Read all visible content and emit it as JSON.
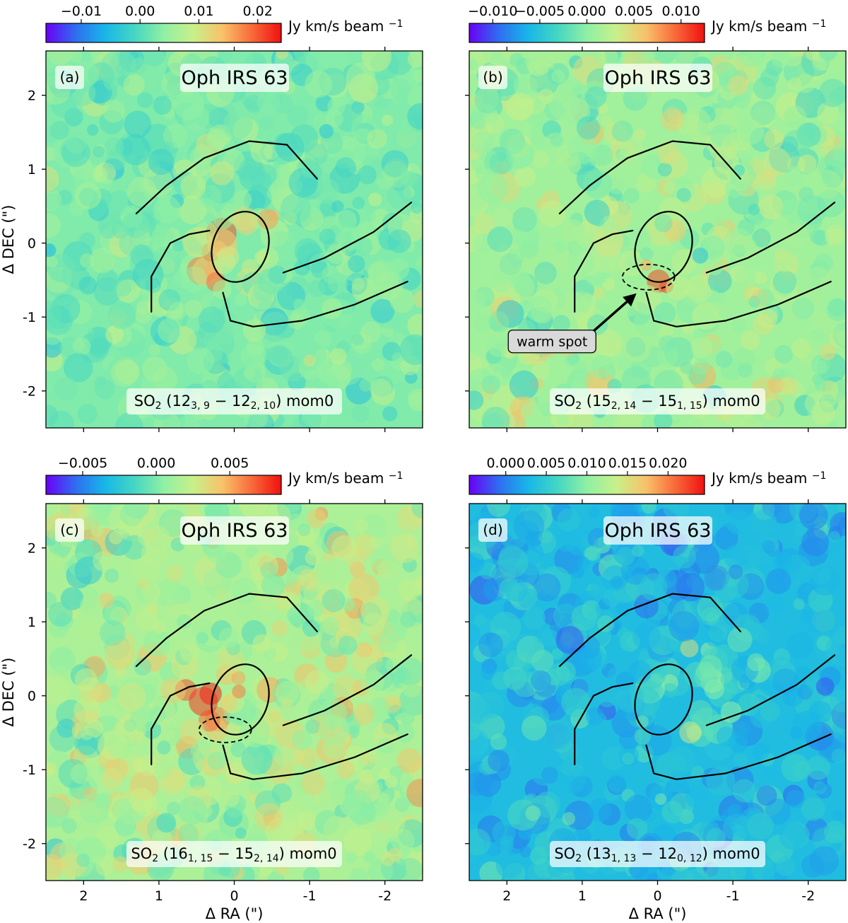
{
  "figure": {
    "xlabel": "Δ RA (\")",
    "ylabel": "Δ DEC (\")",
    "colorbar_unit": "Jy km/s beam",
    "colorbar_unit_exp": "−1",
    "colormap": "rainbow",
    "colors": {
      "structure_lines": "#000000",
      "annotation_box_fill": "#d9d9d9",
      "cmap_stops": [
        "#6a00f5",
        "#2f6df0",
        "#18b6e8",
        "#44d6c3",
        "#8ff0a4",
        "#c8f08a",
        "#f8c26a",
        "#f86a3a",
        "#f01010"
      ]
    }
  },
  "chart_data": [
    {
      "type": "heatmap",
      "panel": "(a)",
      "title": "Oph IRS 63",
      "line_label": {
        "species": "SO",
        "species_sub": "2",
        "upper_J": "12",
        "upper_sub": "3, 9",
        "lower_J": "12",
        "lower_sub": "2, 10",
        "suffix": "mom0"
      },
      "colorbar": {
        "min": -0.016,
        "max": 0.024,
        "ticks": [
          -0.01,
          0.0,
          0.01,
          0.02
        ],
        "tick_labels": [
          "−0.01",
          "0.00",
          "0.01",
          "0.02"
        ]
      },
      "xlim": [
        2.5,
        -2.5
      ],
      "ylim": [
        -2.5,
        2.6
      ],
      "xticks": [
        2,
        1,
        0,
        -1,
        -2
      ],
      "xtick_labels": [
        "2",
        "1",
        "0",
        "-1",
        "-2"
      ],
      "yticks": [
        2,
        1,
        0,
        -1,
        -2
      ],
      "ytick_labels": [
        "2",
        "1",
        "0",
        "-1",
        "-2"
      ],
      "show_xtick_labels": false,
      "show_ytick_labels": true,
      "background_mean": 0.003,
      "noise": 0.005,
      "emission_blobs": [
        {
          "ra": 0.1,
          "dec": -0.1,
          "sigma": 0.3,
          "amp": 0.011
        },
        {
          "ra": -0.5,
          "dec": 0.3,
          "sigma": 0.12,
          "amp": 0.012
        },
        {
          "ra": 0.2,
          "dec": -0.45,
          "sigma": 0.15,
          "amp": 0.009
        }
      ],
      "show_warm_ellipse": false,
      "annotation": null
    },
    {
      "type": "heatmap",
      "panel": "(b)",
      "title": "Oph IRS 63",
      "line_label": {
        "species": "SO",
        "species_sub": "2",
        "upper_J": "15",
        "upper_sub": "2, 14",
        "lower_J": "15",
        "lower_sub": "1, 15",
        "suffix": "mom0"
      },
      "colorbar": {
        "min": -0.0125,
        "max": 0.0125,
        "ticks": [
          -0.01,
          -0.005,
          0.0,
          0.005,
          0.01
        ],
        "tick_labels": [
          "−0.010",
          "−0.005",
          "0.000",
          "0.005",
          "0.010"
        ]
      },
      "xlim": [
        2.5,
        -2.5
      ],
      "ylim": [
        -2.5,
        2.6
      ],
      "xticks": [
        2,
        1,
        0,
        -1,
        -2
      ],
      "xtick_labels": [
        "2",
        "1",
        "0",
        "-1",
        "-2"
      ],
      "yticks": [
        2,
        1,
        0,
        -1,
        -2
      ],
      "ytick_labels": [
        "2",
        "1",
        "0",
        "-1",
        "-2"
      ],
      "show_xtick_labels": false,
      "show_ytick_labels": false,
      "background_mean": 0.001,
      "noise": 0.0035,
      "emission_blobs": [
        {
          "ra": -0.1,
          "dec": -0.5,
          "sigma": 0.14,
          "amp": 0.008
        },
        {
          "ra": 0.2,
          "dec": -0.45,
          "sigma": 0.13,
          "amp": 0.006
        }
      ],
      "show_warm_ellipse": true,
      "annotation": {
        "text": "warm spot",
        "text_ra": 1.4,
        "text_dec": -1.33,
        "arrow_to_ra": 0.28,
        "arrow_to_dec": -0.68
      }
    },
    {
      "type": "heatmap",
      "panel": "(c)",
      "title": "Oph IRS 63",
      "line_label": {
        "species": "SO",
        "species_sub": "2",
        "upper_J": "16",
        "upper_sub": "1, 15",
        "lower_J": "15",
        "lower_sub": "2, 14",
        "suffix": "mom0"
      },
      "colorbar": {
        "min": -0.0075,
        "max": 0.0085,
        "ticks": [
          -0.005,
          0.0,
          0.005
        ],
        "tick_labels": [
          "−0.005",
          "0.000",
          "0.005"
        ]
      },
      "xlim": [
        2.5,
        -2.5
      ],
      "ylim": [
        -2.5,
        2.6
      ],
      "xticks": [
        2,
        1,
        0,
        -1,
        -2
      ],
      "xtick_labels": [
        "2",
        "1",
        "0",
        "-1",
        "-2"
      ],
      "yticks": [
        2,
        1,
        0,
        -1,
        -2
      ],
      "ytick_labels": [
        "2",
        "1",
        "0",
        "-1",
        "-2"
      ],
      "show_xtick_labels": true,
      "show_ytick_labels": true,
      "background_mean": 0.0015,
      "noise": 0.0025,
      "emission_blobs": [
        {
          "ra": 0.45,
          "dec": 0.05,
          "sigma": 0.18,
          "amp": 0.0065
        },
        {
          "ra": 0.3,
          "dec": -0.3,
          "sigma": 0.14,
          "amp": 0.005
        },
        {
          "ra": -0.05,
          "dec": 0.25,
          "sigma": 0.12,
          "amp": 0.004
        }
      ],
      "show_warm_ellipse": true,
      "annotation": null
    },
    {
      "type": "heatmap",
      "panel": "(d)",
      "title": "Oph IRS 63",
      "line_label": {
        "species": "SO",
        "species_sub": "2",
        "upper_J": "13",
        "upper_sub": "1, 13",
        "lower_J": "12",
        "lower_sub": "0, 12",
        "suffix": "mom0"
      },
      "colorbar": {
        "min": -0.0045,
        "max": 0.0245,
        "ticks": [
          0.0,
          0.005,
          0.01,
          0.015,
          0.02
        ],
        "tick_labels": [
          "0.000",
          "0.005",
          "0.010",
          "0.015",
          "0.020"
        ]
      },
      "xlim": [
        2.5,
        -2.5
      ],
      "ylim": [
        -2.5,
        2.6
      ],
      "xticks": [
        2,
        1,
        0,
        -1,
        -2
      ],
      "xtick_labels": [
        "2",
        "1",
        "0",
        "-1",
        "-2"
      ],
      "yticks": [
        2,
        1,
        0,
        -1,
        -2
      ],
      "ytick_labels": [
        "2",
        "1",
        "0",
        "-1",
        "-2"
      ],
      "show_xtick_labels": true,
      "show_ytick_labels": false,
      "background_mean": 0.0035,
      "noise": 0.0035,
      "emission_blobs": [
        {
          "ra": -0.5,
          "dec": 0.6,
          "sigma": 0.12,
          "amp": 0.013
        },
        {
          "ra": -0.25,
          "dec": -0.4,
          "sigma": 0.12,
          "amp": 0.013
        },
        {
          "ra": -0.5,
          "dec": 0.0,
          "sigma": 0.4,
          "amp": 0.006
        },
        {
          "ra": -1.0,
          "dec": 0.4,
          "sigma": 0.3,
          "amp": 0.004
        }
      ],
      "show_warm_ellipse": false,
      "annotation": null
    }
  ]
}
